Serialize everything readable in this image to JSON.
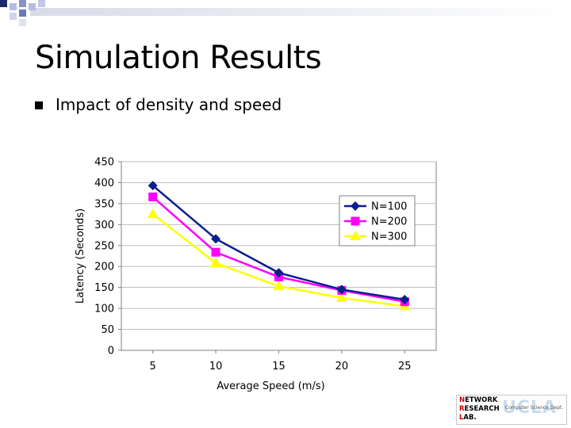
{
  "slide": {
    "title": "Simulation Results",
    "bullet": "Impact of density and speed"
  },
  "logo": {
    "line1_initial": "N",
    "line1_rest": "ETWORK",
    "line2_initial": "R",
    "line2_rest": "ESEARCH",
    "line3_initial": "L",
    "line3_rest": "AB.",
    "dept": "Computer Science Dept.",
    "ucla": "UCLA"
  },
  "chart_data": {
    "type": "line",
    "xlabel": "Average Speed (m/s)",
    "ylabel": "Latency (Seconds)",
    "x": [
      5,
      10,
      15,
      20,
      25
    ],
    "ylim": [
      0,
      450
    ],
    "yticks": [
      0,
      50,
      100,
      150,
      200,
      250,
      300,
      350,
      400,
      450
    ],
    "grid": true,
    "legend_position": "right",
    "series": [
      {
        "name": "N=100",
        "color": "#0a1f8f",
        "marker": "diamond",
        "values": [
          393,
          266,
          185,
          145,
          121
        ]
      },
      {
        "name": "N=200",
        "color": "#ff00ff",
        "marker": "square",
        "values": [
          366,
          234,
          175,
          143,
          116
        ]
      },
      {
        "name": "N=300",
        "color": "#ffff00",
        "marker": "triangle",
        "values": [
          325,
          208,
          153,
          125,
          105
        ]
      }
    ]
  }
}
